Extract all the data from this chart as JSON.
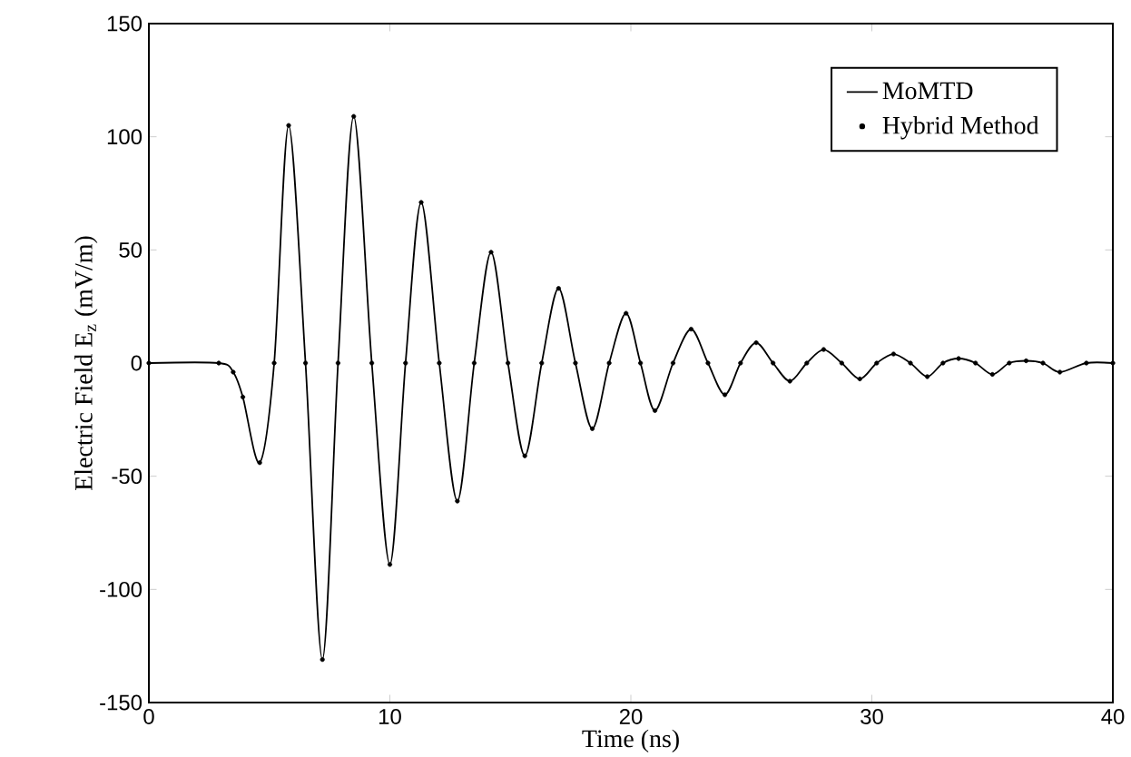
{
  "chart_data": {
    "type": "line",
    "xlabel": "Time (ns)",
    "ylabel": "Electric Field E$_{z}$ (mV/m)",
    "x": [
      0,
      2.9,
      3.5,
      3.9,
      4.6,
      5.2,
      5.8,
      6.5,
      7.2,
      7.85,
      8.5,
      9.25,
      10.0,
      10.65,
      11.3,
      12.05,
      12.8,
      13.5,
      14.2,
      14.9,
      15.6,
      16.3,
      17.0,
      17.7,
      18.4,
      19.1,
      19.8,
      20.4,
      21.0,
      21.75,
      22.5,
      23.2,
      23.9,
      24.55,
      25.2,
      25.9,
      26.6,
      27.3,
      28.0,
      28.75,
      29.5,
      30.2,
      30.9,
      31.6,
      32.3,
      32.95,
      33.6,
      34.3,
      35.0,
      35.7,
      36.4,
      37.1,
      37.8,
      38.9,
      40
    ],
    "series": [
      {
        "name": "MoMTD",
        "color": "#000000",
        "marker": "none",
        "line_style": "solid",
        "values": [
          0,
          0,
          -4,
          -15,
          -44,
          0,
          105,
          0,
          -131,
          0,
          109,
          0,
          -89,
          0,
          71,
          0,
          -61,
          0,
          49,
          0,
          -41,
          0,
          33,
          0,
          -29,
          0,
          22,
          0,
          -21,
          0,
          15,
          0,
          -14,
          0,
          9,
          0,
          -8,
          0,
          6,
          0,
          -7,
          0,
          4,
          0,
          -6,
          0,
          2,
          0,
          -5,
          0,
          1,
          0,
          -4,
          0,
          0
        ]
      },
      {
        "name": "Hybrid Method",
        "color": "#000000",
        "type": "scatter",
        "marker": "circle",
        "values": [
          0,
          0,
          -4,
          -15,
          -44,
          0,
          105,
          0,
          -131,
          0,
          109,
          0,
          -89,
          0,
          71,
          0,
          -61,
          0,
          49,
          0,
          -41,
          0,
          33,
          0,
          -29,
          0,
          22,
          0,
          -21,
          0,
          15,
          0,
          -14,
          0,
          9,
          0,
          -8,
          0,
          6,
          0,
          -7,
          0,
          4,
          0,
          -6,
          0,
          2,
          0,
          -5,
          0,
          1,
          0,
          -4,
          0,
          0
        ]
      }
    ],
    "xlim": [
      0,
      40
    ],
    "xticks": [
      0,
      10,
      20,
      30,
      40
    ],
    "ylim": [
      -150,
      150
    ],
    "yticks": [
      -150,
      -100,
      -50,
      0,
      50,
      100,
      150
    ],
    "grid": false,
    "legend": "top right"
  }
}
